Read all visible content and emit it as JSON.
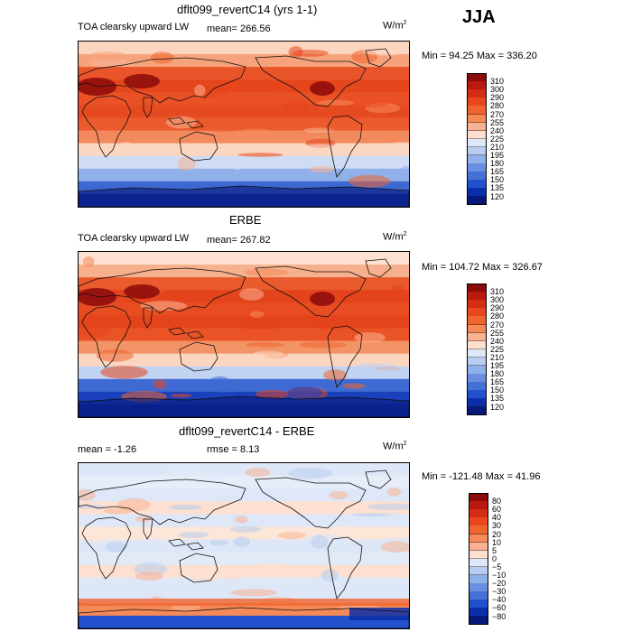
{
  "season": "JJA",
  "unit_base": "W/m",
  "unit_exp": "2",
  "panels": [
    {
      "title": "dflt099_revertC14 (yrs 1-1)",
      "field": "TOA clearsky upward LW",
      "stat": "mean= 266.56",
      "range": "Min =  94.25 Max = 336.20",
      "scale_labels": [
        "310",
        "300",
        "290",
        "280",
        "270",
        "255",
        "240",
        "225",
        "210",
        "195",
        "180",
        "165",
        "150",
        "135",
        "120"
      ],
      "colors": [
        "#8b0a0a",
        "#b81a10",
        "#d42d14",
        "#e8461c",
        "#f0642e",
        "#f58a58",
        "#f9b394",
        "#fde0cf",
        "#dde7f7",
        "#b8cdef",
        "#8fb0e8",
        "#6a8fe0",
        "#4571d6",
        "#2151cc",
        "#0b2fa8",
        "#06197a"
      ],
      "map_type": "abs",
      "latband": [
        "#fbd5bf",
        "#f6a27a",
        "#e9542a",
        "#e6461c",
        "#ea5126",
        "#e64a20",
        "#ec5b2e",
        "#f28a5e",
        "#fbd7c1",
        "#cfdcf3",
        "#8fb0e8",
        "#3d68d2",
        "#1436b2"
      ]
    },
    {
      "title": "ERBE",
      "field": "TOA clearsky upward LW",
      "stat": "mean= 267.82",
      "range": "Min = 104.72 Max = 326.67",
      "scale_labels": [
        "310",
        "300",
        "290",
        "280",
        "270",
        "255",
        "240",
        "225",
        "210",
        "195",
        "180",
        "165",
        "150",
        "135",
        "120"
      ],
      "colors": [
        "#8b0a0a",
        "#b81a10",
        "#d42d14",
        "#e8461c",
        "#f0642e",
        "#f58a58",
        "#f9b394",
        "#fde0cf",
        "#dde7f7",
        "#b8cdef",
        "#8fb0e8",
        "#6a8fe0",
        "#4571d6",
        "#2151cc",
        "#0b2fa8",
        "#06197a"
      ],
      "map_type": "abs",
      "latband": [
        "#fde0cf",
        "#f7b08d",
        "#e95a2c",
        "#e4441b",
        "#e84d22",
        "#e4441b",
        "#ea5326",
        "#f29466",
        "#fbd5bf",
        "#c2d3f1",
        "#3f6ad4",
        "#1a40bc",
        "#0b2fa8"
      ]
    },
    {
      "title": "dflt099_revertC14 - ERBE",
      "stat_mean": "mean =   -1.26",
      "stat_rmse": "rmse =   8.13",
      "range": "Min = -121.48 Max =  41.96",
      "scale_labels": [
        "80",
        "60",
        "40",
        "30",
        "20",
        "10",
        "5",
        "0",
        "−5",
        "−10",
        "−20",
        "−30",
        "−40",
        "−60",
        "−80"
      ],
      "colors": [
        "#8b0a0a",
        "#b81a10",
        "#d42d14",
        "#e8461c",
        "#f0642e",
        "#f58a58",
        "#f9b394",
        "#fde0cf",
        "#dde7f7",
        "#b8cdef",
        "#8fb0e8",
        "#6a8fe0",
        "#4571d6",
        "#2151cc",
        "#0b2fa8",
        "#06197a"
      ],
      "map_type": "diff",
      "latband": [
        "#dde7f7",
        "#e6ecf8",
        "#dde7f7",
        "#fde0cf",
        "#dde7f7",
        "#fbe6d8",
        "#dde7f7",
        "#e2eaf8",
        "#fde0cf",
        "#dde7f7",
        "#dde7f7",
        "#f58a58",
        "#2151cc"
      ]
    }
  ]
}
